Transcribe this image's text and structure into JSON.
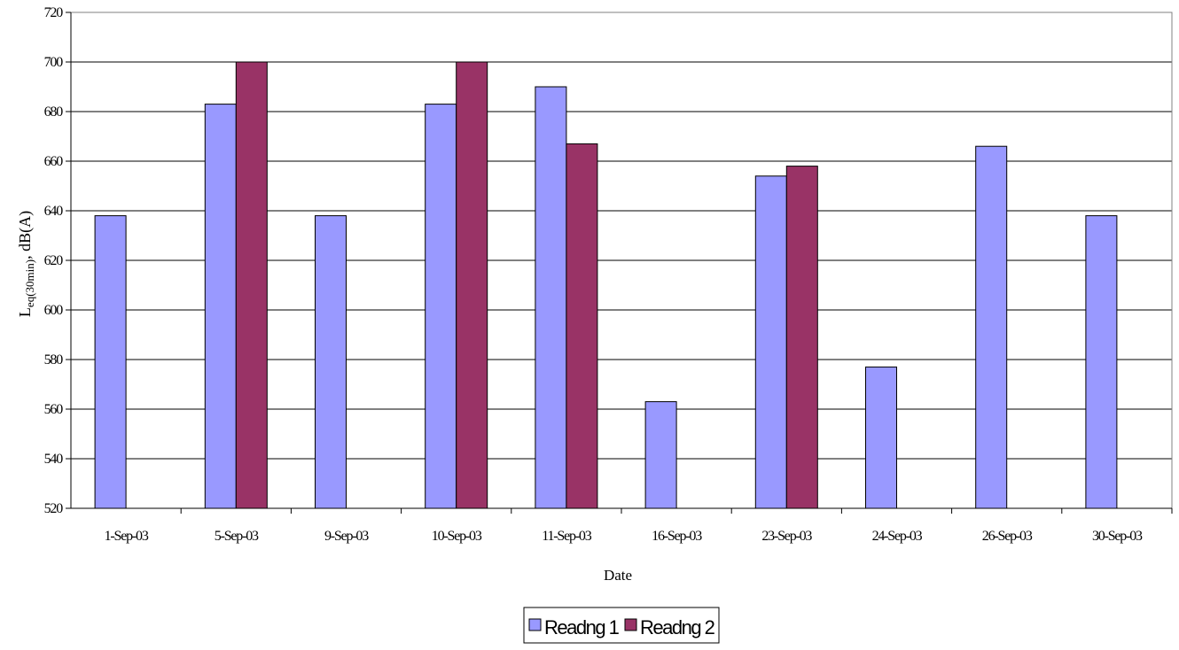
{
  "chart_data": {
    "type": "bar",
    "title": "",
    "xlabel": "Date",
    "ylabel": {
      "main": "L",
      "subscript": "eq(30min)",
      "suffix": ", dB(A)"
    },
    "ylim": [
      52.0,
      72.0
    ],
    "ytick_step": 2.0,
    "ytick_labels": [
      "520",
      "540",
      "560",
      "580",
      "600",
      "620",
      "640",
      "660",
      "680",
      "700",
      "720"
    ],
    "grid": "horizontal",
    "legend_position": "bottom",
    "categories": [
      "1-Sep-03",
      "5-Sep-03",
      "9-Sep-03",
      "10-Sep-03",
      "11-Sep-03",
      "16-Sep-03",
      "23-Sep-03",
      "24-Sep-03",
      "26-Sep-03",
      "30-Sep-03"
    ],
    "series": [
      {
        "name": "Readng 1",
        "color": "#9999FF",
        "values": [
          63.8,
          68.3,
          63.8,
          68.3,
          69.0,
          56.3,
          65.4,
          57.7,
          66.6,
          63.8
        ]
      },
      {
        "name": "Readng 2",
        "color": "#993366",
        "values": [
          null,
          70.0,
          null,
          70.0,
          66.7,
          null,
          65.8,
          null,
          null,
          null
        ]
      }
    ]
  }
}
